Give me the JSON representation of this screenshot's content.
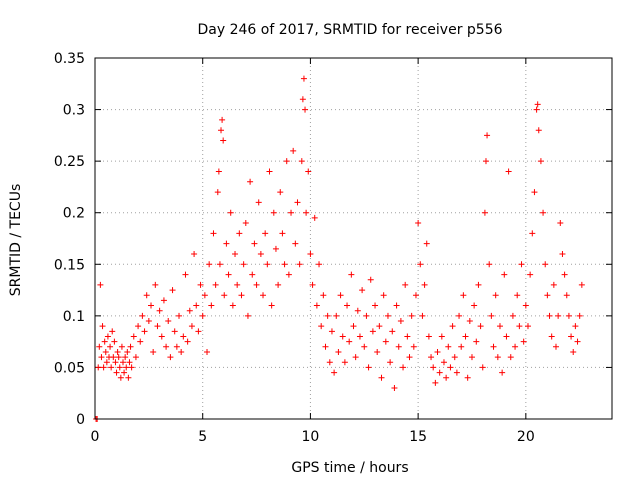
{
  "chart_data": {
    "type": "scatter",
    "title": "Day 246 of 2017, SRMTID for receiver p556",
    "xlabel": "GPS time / hours",
    "ylabel": "SRMTID / TECUs",
    "xlim": [
      0,
      24
    ],
    "ylim": [
      0,
      0.35
    ],
    "x_ticks": [
      0,
      5,
      10,
      15,
      20
    ],
    "x_tick_labels": [
      "0",
      "5",
      "10",
      "15",
      "20"
    ],
    "y_ticks": [
      0,
      0.05,
      0.1,
      0.15,
      0.2,
      0.25,
      0.3,
      0.35
    ],
    "y_tick_labels": [
      "0",
      "0.05",
      "0.1",
      "0.15",
      "0.2",
      "0.25",
      "0.3",
      "0.35"
    ],
    "grid": true,
    "marker": "+",
    "color": "#ff0000",
    "series": [
      {
        "name": "SRMTID",
        "points": [
          [
            0.05,
            0.0
          ],
          [
            0.1,
            0.0
          ],
          [
            0.15,
            0.05
          ],
          [
            0.2,
            0.07
          ],
          [
            0.25,
            0.13
          ],
          [
            0.3,
            0.06
          ],
          [
            0.35,
            0.09
          ],
          [
            0.4,
            0.05
          ],
          [
            0.45,
            0.075
          ],
          [
            0.5,
            0.065
          ],
          [
            0.55,
            0.055
          ],
          [
            0.6,
            0.08
          ],
          [
            0.65,
            0.06
          ],
          [
            0.7,
            0.07
          ],
          [
            0.75,
            0.05
          ],
          [
            0.8,
            0.085
          ],
          [
            0.85,
            0.06
          ],
          [
            0.9,
            0.075
          ],
          [
            0.95,
            0.055
          ],
          [
            1.0,
            0.045
          ],
          [
            1.05,
            0.065
          ],
          [
            1.1,
            0.06
          ],
          [
            1.15,
            0.05
          ],
          [
            1.2,
            0.04
          ],
          [
            1.25,
            0.07
          ],
          [
            1.3,
            0.055
          ],
          [
            1.35,
            0.045
          ],
          [
            1.4,
            0.06
          ],
          [
            1.45,
            0.05
          ],
          [
            1.5,
            0.065
          ],
          [
            1.55,
            0.04
          ],
          [
            1.6,
            0.055
          ],
          [
            1.65,
            0.07
          ],
          [
            1.7,
            0.05
          ],
          [
            1.8,
            0.08
          ],
          [
            1.9,
            0.06
          ],
          [
            2.0,
            0.09
          ],
          [
            2.1,
            0.075
          ],
          [
            2.2,
            0.1
          ],
          [
            2.3,
            0.085
          ],
          [
            2.4,
            0.12
          ],
          [
            2.5,
            0.095
          ],
          [
            2.6,
            0.11
          ],
          [
            2.7,
            0.065
          ],
          [
            2.8,
            0.13
          ],
          [
            2.9,
            0.09
          ],
          [
            3.0,
            0.105
          ],
          [
            3.1,
            0.08
          ],
          [
            3.2,
            0.115
          ],
          [
            3.3,
            0.07
          ],
          [
            3.4,
            0.095
          ],
          [
            3.5,
            0.06
          ],
          [
            3.6,
            0.125
          ],
          [
            3.7,
            0.085
          ],
          [
            3.8,
            0.07
          ],
          [
            3.9,
            0.1
          ],
          [
            4.0,
            0.065
          ],
          [
            4.1,
            0.08
          ],
          [
            4.2,
            0.14
          ],
          [
            4.3,
            0.075
          ],
          [
            4.4,
            0.105
          ],
          [
            4.5,
            0.09
          ],
          [
            4.6,
            0.16
          ],
          [
            4.7,
            0.11
          ],
          [
            4.8,
            0.085
          ],
          [
            4.9,
            0.13
          ],
          [
            5.0,
            0.1
          ],
          [
            5.1,
            0.12
          ],
          [
            5.2,
            0.065
          ],
          [
            5.3,
            0.15
          ],
          [
            5.4,
            0.11
          ],
          [
            5.5,
            0.18
          ],
          [
            5.6,
            0.13
          ],
          [
            5.7,
            0.22
          ],
          [
            5.75,
            0.24
          ],
          [
            5.8,
            0.15
          ],
          [
            5.85,
            0.28
          ],
          [
            5.9,
            0.29
          ],
          [
            5.95,
            0.27
          ],
          [
            6.0,
            0.12
          ],
          [
            6.1,
            0.17
          ],
          [
            6.2,
            0.14
          ],
          [
            6.3,
            0.2
          ],
          [
            6.4,
            0.11
          ],
          [
            6.5,
            0.16
          ],
          [
            6.6,
            0.13
          ],
          [
            6.7,
            0.18
          ],
          [
            6.8,
            0.12
          ],
          [
            6.9,
            0.15
          ],
          [
            7.0,
            0.19
          ],
          [
            7.1,
            0.1
          ],
          [
            7.2,
            0.23
          ],
          [
            7.3,
            0.14
          ],
          [
            7.4,
            0.17
          ],
          [
            7.5,
            0.13
          ],
          [
            7.6,
            0.21
          ],
          [
            7.7,
            0.16
          ],
          [
            7.8,
            0.12
          ],
          [
            7.9,
            0.18
          ],
          [
            8.0,
            0.15
          ],
          [
            8.1,
            0.24
          ],
          [
            8.2,
            0.11
          ],
          [
            8.3,
            0.2
          ],
          [
            8.4,
            0.165
          ],
          [
            8.5,
            0.13
          ],
          [
            8.6,
            0.22
          ],
          [
            8.7,
            0.18
          ],
          [
            8.8,
            0.15
          ],
          [
            8.9,
            0.25
          ],
          [
            9.0,
            0.14
          ],
          [
            9.1,
            0.2
          ],
          [
            9.2,
            0.26
          ],
          [
            9.3,
            0.17
          ],
          [
            9.4,
            0.21
          ],
          [
            9.5,
            0.15
          ],
          [
            9.6,
            0.25
          ],
          [
            9.65,
            0.31
          ],
          [
            9.7,
            0.33
          ],
          [
            9.75,
            0.3
          ],
          [
            9.8,
            0.2
          ],
          [
            9.9,
            0.24
          ],
          [
            10.0,
            0.16
          ],
          [
            10.1,
            0.13
          ],
          [
            10.2,
            0.195
          ],
          [
            10.3,
            0.11
          ],
          [
            10.4,
            0.15
          ],
          [
            10.5,
            0.09
          ],
          [
            10.6,
            0.12
          ],
          [
            10.7,
            0.07
          ],
          [
            10.8,
            0.1
          ],
          [
            10.9,
            0.055
          ],
          [
            11.0,
            0.085
          ],
          [
            11.1,
            0.045
          ],
          [
            11.2,
            0.1
          ],
          [
            11.3,
            0.065
          ],
          [
            11.4,
            0.12
          ],
          [
            11.5,
            0.08
          ],
          [
            11.6,
            0.055
          ],
          [
            11.7,
            0.11
          ],
          [
            11.8,
            0.075
          ],
          [
            11.9,
            0.14
          ],
          [
            12.0,
            0.09
          ],
          [
            12.1,
            0.06
          ],
          [
            12.2,
            0.105
          ],
          [
            12.3,
            0.08
          ],
          [
            12.4,
            0.125
          ],
          [
            12.5,
            0.07
          ],
          [
            12.6,
            0.1
          ],
          [
            12.7,
            0.05
          ],
          [
            12.8,
            0.135
          ],
          [
            12.9,
            0.085
          ],
          [
            13.0,
            0.11
          ],
          [
            13.1,
            0.065
          ],
          [
            13.2,
            0.09
          ],
          [
            13.3,
            0.04
          ],
          [
            13.4,
            0.12
          ],
          [
            13.5,
            0.075
          ],
          [
            13.6,
            0.1
          ],
          [
            13.7,
            0.055
          ],
          [
            13.8,
            0.085
          ],
          [
            13.9,
            0.03
          ],
          [
            14.0,
            0.11
          ],
          [
            14.1,
            0.07
          ],
          [
            14.2,
            0.095
          ],
          [
            14.3,
            0.05
          ],
          [
            14.4,
            0.13
          ],
          [
            14.5,
            0.08
          ],
          [
            14.6,
            0.06
          ],
          [
            14.7,
            0.1
          ],
          [
            14.8,
            0.07
          ],
          [
            14.9,
            0.12
          ],
          [
            15.0,
            0.19
          ],
          [
            15.1,
            0.15
          ],
          [
            15.2,
            0.1
          ],
          [
            15.3,
            0.13
          ],
          [
            15.4,
            0.17
          ],
          [
            15.5,
            0.08
          ],
          [
            15.6,
            0.06
          ],
          [
            15.7,
            0.05
          ],
          [
            15.8,
            0.035
          ],
          [
            15.9,
            0.065
          ],
          [
            16.0,
            0.045
          ],
          [
            16.1,
            0.08
          ],
          [
            16.2,
            0.055
          ],
          [
            16.3,
            0.04
          ],
          [
            16.4,
            0.07
          ],
          [
            16.5,
            0.05
          ],
          [
            16.6,
            0.09
          ],
          [
            16.7,
            0.06
          ],
          [
            16.8,
            0.045
          ],
          [
            16.9,
            0.1
          ],
          [
            17.0,
            0.07
          ],
          [
            17.1,
            0.12
          ],
          [
            17.2,
            0.08
          ],
          [
            17.3,
            0.04
          ],
          [
            17.4,
            0.095
          ],
          [
            17.5,
            0.06
          ],
          [
            17.6,
            0.11
          ],
          [
            17.7,
            0.075
          ],
          [
            17.8,
            0.13
          ],
          [
            17.9,
            0.09
          ],
          [
            18.0,
            0.05
          ],
          [
            18.1,
            0.2
          ],
          [
            18.15,
            0.25
          ],
          [
            18.2,
            0.275
          ],
          [
            18.3,
            0.15
          ],
          [
            18.4,
            0.1
          ],
          [
            18.5,
            0.07
          ],
          [
            18.6,
            0.12
          ],
          [
            18.7,
            0.06
          ],
          [
            18.8,
            0.09
          ],
          [
            18.9,
            0.045
          ],
          [
            19.0,
            0.14
          ],
          [
            19.1,
            0.08
          ],
          [
            19.2,
            0.24
          ],
          [
            19.3,
            0.06
          ],
          [
            19.4,
            0.1
          ],
          [
            19.5,
            0.07
          ],
          [
            19.6,
            0.12
          ],
          [
            19.7,
            0.09
          ],
          [
            19.8,
            0.15
          ],
          [
            19.9,
            0.075
          ],
          [
            20.0,
            0.11
          ],
          [
            20.1,
            0.09
          ],
          [
            20.2,
            0.14
          ],
          [
            20.3,
            0.18
          ],
          [
            20.4,
            0.22
          ],
          [
            20.5,
            0.3
          ],
          [
            20.55,
            0.305
          ],
          [
            20.6,
            0.28
          ],
          [
            20.7,
            0.25
          ],
          [
            20.8,
            0.2
          ],
          [
            20.9,
            0.15
          ],
          [
            21.0,
            0.12
          ],
          [
            21.1,
            0.1
          ],
          [
            21.2,
            0.08
          ],
          [
            21.3,
            0.13
          ],
          [
            21.4,
            0.07
          ],
          [
            21.5,
            0.1
          ],
          [
            21.6,
            0.19
          ],
          [
            21.7,
            0.16
          ],
          [
            21.8,
            0.14
          ],
          [
            21.9,
            0.12
          ],
          [
            22.0,
            0.1
          ],
          [
            22.1,
            0.08
          ],
          [
            22.2,
            0.065
          ],
          [
            22.3,
            0.09
          ],
          [
            22.4,
            0.075
          ],
          [
            22.5,
            0.1
          ],
          [
            22.6,
            0.13
          ]
        ]
      }
    ]
  }
}
